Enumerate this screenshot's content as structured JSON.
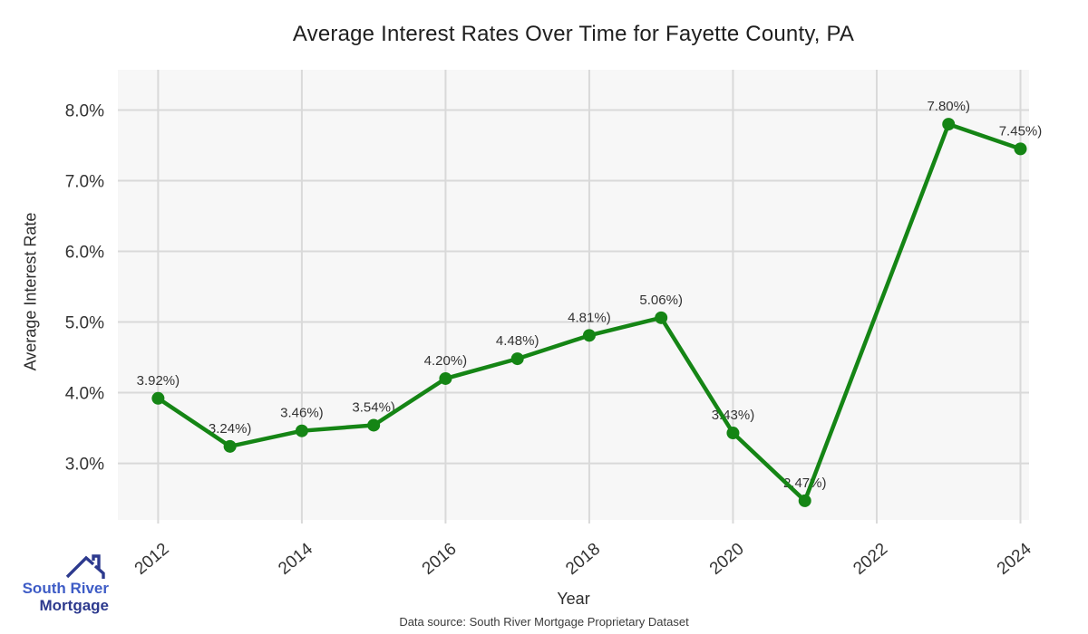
{
  "title": "Average Interest Rates Over Time for Fayette County, PA",
  "footer": "Data source: South River Mortgage Proprietary Dataset",
  "brand": {
    "line1": "South River",
    "line2": "Mortgage",
    "icon": "house-roof-icon",
    "color_primary": "#3e5cc6",
    "color_secondary": "#2d3a8e"
  },
  "chart_data": {
    "type": "line",
    "title": "Average Interest Rates Over Time for Fayette County, PA",
    "xlabel": "Year",
    "ylabel": "Average Interest Rate",
    "x": [
      2012,
      2013,
      2014,
      2015,
      2016,
      2017,
      2018,
      2019,
      2020,
      2021,
      2023,
      2024
    ],
    "values": [
      3.92,
      3.24,
      3.46,
      3.54,
      4.2,
      4.48,
      4.81,
      5.06,
      3.43,
      2.47,
      7.8,
      7.45
    ],
    "point_labels": [
      "3.92%)",
      "3.24%)",
      "3.46%)",
      "3.54%)",
      "4.20%)",
      "4.48%)",
      "4.81%)",
      "5.06%)",
      "3.43%)",
      "2.47%)",
      "7.80%)",
      "7.45%)"
    ],
    "x_ticks": [
      2012,
      2014,
      2016,
      2018,
      2020,
      2022,
      2024
    ],
    "x_tick_labels": [
      "2012",
      "2014",
      "2016",
      "2018",
      "2020",
      "2022",
      "2024"
    ],
    "y_ticks": [
      3,
      4,
      5,
      6,
      7,
      8
    ],
    "y_tick_labels": [
      "3.0%",
      "4.0%",
      "5.0%",
      "6.0%",
      "7.0%",
      "8.0%"
    ],
    "xlim": [
      2011.44,
      2024.12
    ],
    "ylim": [
      2.2,
      8.57
    ],
    "grid": true,
    "legend": "none",
    "line_color": "#158515",
    "marker_color": "#158515",
    "plot_bg": "#f7f7f7",
    "grid_color": "#d9d9d9",
    "tick_label_color": "#333333",
    "point_label_color": "#333333"
  }
}
